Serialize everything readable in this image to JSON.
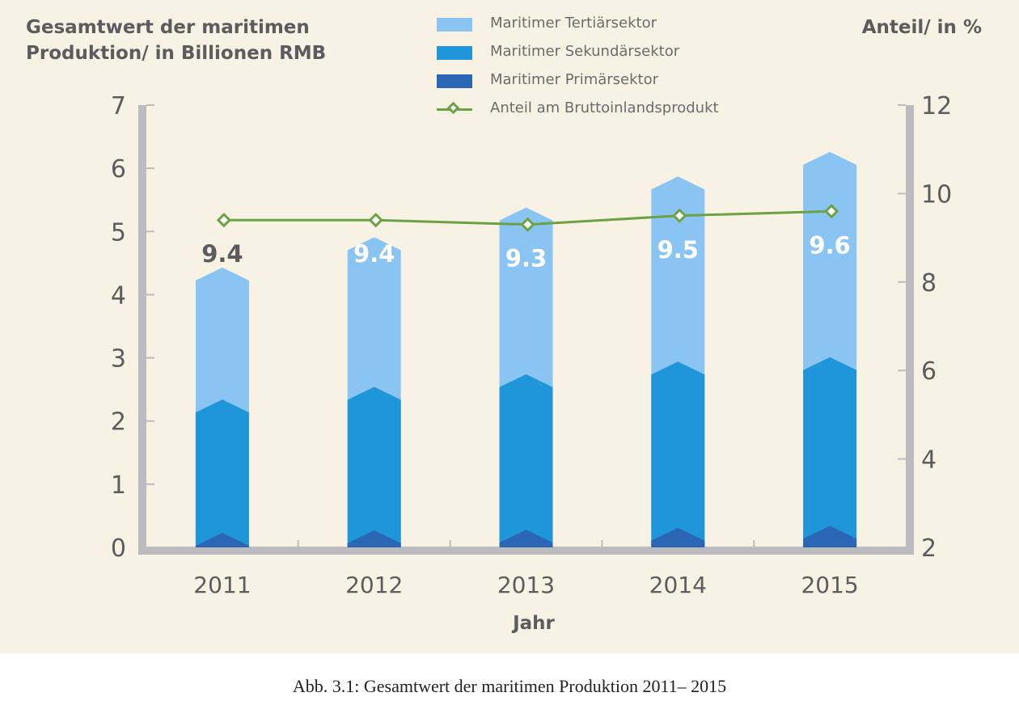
{
  "colors": {
    "background": "#f8f2e4",
    "axis": "#bcbcc0",
    "axis_text": "#5c5b5e",
    "tertiary": "#8ac4f2",
    "secondary": "#1f96da",
    "primary": "#2b66b5",
    "share_line": "#6aa244"
  },
  "caption": "Abb. 3.1: Gesamtwert der maritimen Produktion 2011– 2015",
  "chart_data": {
    "type": "bar",
    "stacked": true,
    "title": "",
    "ylabel": "Gesamtwert der maritimen Produktion/ in Billionen RMB",
    "y2label": "Anteil/ in %",
    "xlabel": "Jahr",
    "categories": [
      "2011",
      "2012",
      "2013",
      "2014",
      "2015"
    ],
    "ylim": [
      0,
      7
    ],
    "yticks": [
      "0",
      "1",
      "2",
      "3",
      "4",
      "5",
      "6",
      "7"
    ],
    "y2lim": [
      2,
      12
    ],
    "y2ticks": [
      "2",
      "4",
      "6",
      "8",
      "10",
      "12"
    ],
    "legend_position": "top-center",
    "series": [
      {
        "name": "Maritimer Tertiärsektor",
        "values": [
          2.09,
          2.37,
          2.64,
          2.93,
          3.25
        ],
        "color_key": "tertiary"
      },
      {
        "name": "Maritimer Sekundärsektor",
        "values": [
          2.11,
          2.27,
          2.46,
          2.63,
          2.67
        ],
        "color_key": "secondary"
      },
      {
        "name": "Maritimer Primärsektor",
        "values": [
          0.23,
          0.27,
          0.28,
          0.31,
          0.34
        ],
        "color_key": "primary"
      },
      {
        "name": "Anteil am Bruttoinlandsprodukt",
        "type": "line",
        "axis": "right",
        "values": [
          9.4,
          9.4,
          9.3,
          9.5,
          9.6
        ],
        "data_labels": [
          "9.4",
          "9.4",
          "9.3",
          "9.5",
          "9.6"
        ],
        "color_key": "share_line"
      }
    ]
  }
}
